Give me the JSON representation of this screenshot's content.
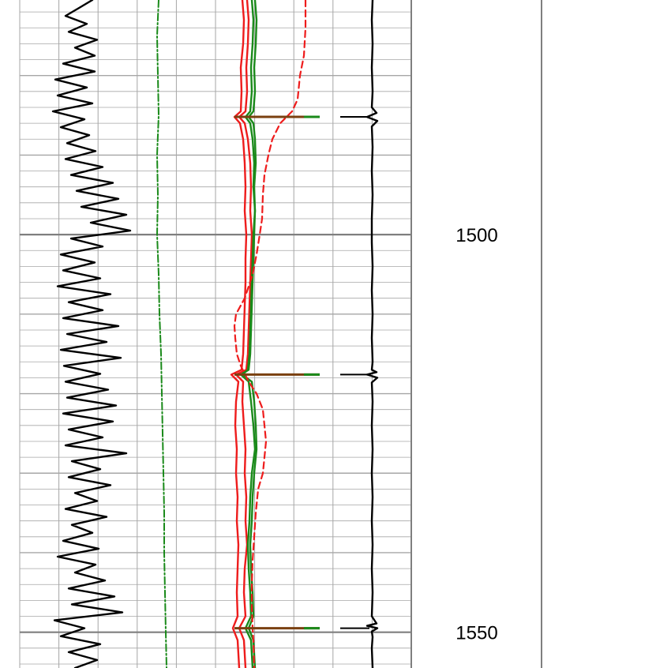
{
  "chart_data": {
    "type": "line",
    "title": "",
    "depth_axis": {
      "ylim": [
        1470.5,
        1554.5
      ],
      "major_step": 50,
      "mid_step": 10,
      "minor_step": 2,
      "labels": [
        "1500",
        "1550"
      ],
      "label_values": [
        1500,
        1550
      ]
    },
    "colors": {
      "grid_minor": "#a6a6a6",
      "grid_major": "#7f7f7f",
      "track_border": "#7f7f7f",
      "black_curve": "#000000",
      "green_curve": "#1a8a1a",
      "red_curve": "#ee1c1c",
      "brown_marker": "#7a4010"
    },
    "marker_depths": [
      1485.2,
      1517.6,
      1549.5
    ],
    "series": [
      {
        "key": "black_track1",
        "style": "solid",
        "color": "#000000",
        "depth": [
          1470.5,
          1471.5,
          1472.5,
          1473.5,
          1474.5,
          1475.5,
          1476.5,
          1477.5,
          1478.5,
          1479.5,
          1480.5,
          1481.5,
          1482.5,
          1483.5,
          1484.5,
          1485.5,
          1486.5,
          1487.5,
          1488.5,
          1489.5,
          1490.5,
          1491.5,
          1492.5,
          1493.5,
          1494.5,
          1495.5,
          1496.5,
          1497.5,
          1498.5,
          1499.5,
          1500.5,
          1501.5,
          1502.5,
          1503.5,
          1504.5,
          1505.5,
          1506.5,
          1507.5,
          1508.5,
          1509.5,
          1510.5,
          1511.5,
          1512.5,
          1513.5,
          1514.5,
          1515.5,
          1516.5,
          1517.5,
          1518.5,
          1519.5,
          1520.5,
          1521.5,
          1522.5,
          1523.5,
          1524.5,
          1525.5,
          1526.5,
          1527.5,
          1528.5,
          1529.5,
          1530.5,
          1531.5,
          1532.5,
          1533.5,
          1534.5,
          1535.5,
          1536.5,
          1537.5,
          1538.5,
          1539.5,
          1540.5,
          1541.5,
          1542.5,
          1543.5,
          1544.5,
          1545.5,
          1546.5,
          1547.5,
          1548.5,
          1549.5,
          1550.5,
          1551.5,
          1552.5,
          1553.5,
          1554.5
        ],
        "value": [
          0.92,
          0.75,
          0.58,
          0.85,
          0.62,
          0.98,
          0.7,
          0.95,
          0.55,
          0.95,
          0.45,
          0.85,
          0.48,
          0.92,
          0.42,
          0.82,
          0.52,
          0.88,
          0.6,
          0.96,
          0.58,
          1.05,
          0.65,
          1.18,
          0.72,
          1.25,
          0.78,
          1.35,
          0.9,
          1.4,
          0.65,
          1.05,
          0.52,
          0.95,
          0.55,
          1.02,
          0.48,
          1.15,
          0.62,
          1.05,
          0.55,
          1.25,
          0.6,
          1.1,
          0.52,
          1.28,
          0.56,
          1.02,
          0.58,
          1.12,
          0.6,
          1.22,
          0.55,
          1.18,
          0.62,
          1.05,
          0.58,
          1.35,
          0.66,
          1.02,
          0.62,
          1.15,
          0.7,
          0.98,
          0.58,
          1.1,
          0.66,
          0.92,
          0.55,
          1.0,
          0.48,
          0.96,
          0.7,
          1.08,
          0.62,
          1.2,
          0.66,
          1.3,
          0.44,
          0.82,
          0.52,
          1.02,
          0.62,
          0.98,
          0.7
        ]
      },
      {
        "key": "green_dashdot_track1",
        "style": "dashdot",
        "color": "#1a8a1a",
        "depth": [
          1470.5,
          1475.0,
          1480.0,
          1485.0,
          1490.0,
          1495.0,
          1500.0,
          1505.0,
          1510.0,
          1515.0,
          1520.0,
          1525.0,
          1530.0,
          1535.0,
          1540.0,
          1545.0,
          1550.0,
          1554.5
        ],
        "value": [
          1.76,
          1.74,
          1.75,
          1.76,
          1.74,
          1.75,
          1.74,
          1.76,
          1.77,
          1.79,
          1.8,
          1.81,
          1.82,
          1.83,
          1.83,
          1.84,
          1.85,
          1.86
        ]
      },
      {
        "key": "red_solid_1",
        "style": "solid",
        "color": "#ee1c1c",
        "depth": [
          1470.5,
          1473.0,
          1476.0,
          1479.0,
          1482.0,
          1484.5,
          1485.2,
          1486.0,
          1488.0,
          1491.0,
          1494.0,
          1497.0,
          1500.0,
          1503.0,
          1506.0,
          1509.0,
          1512.0,
          1515.0,
          1517.0,
          1517.6,
          1518.5,
          1521.0,
          1524.0,
          1527.0,
          1530.0,
          1533.0,
          1536.0,
          1539.0,
          1542.0,
          1545.0,
          1548.0,
          1549.5,
          1551.0,
          1554.5
        ],
        "value": [
          2.82,
          2.84,
          2.83,
          2.8,
          2.81,
          2.8,
          2.72,
          2.79,
          2.83,
          2.85,
          2.86,
          2.85,
          2.87,
          2.86,
          2.86,
          2.85,
          2.84,
          2.83,
          2.81,
          2.68,
          2.77,
          2.74,
          2.73,
          2.75,
          2.74,
          2.76,
          2.75,
          2.77,
          2.76,
          2.75,
          2.76,
          2.7,
          2.76,
          2.78
        ]
      },
      {
        "key": "red_solid_2",
        "style": "solid",
        "color": "#ee1c1c",
        "depth": [
          1470.5,
          1473.0,
          1476.0,
          1479.0,
          1482.0,
          1484.5,
          1485.2,
          1486.0,
          1488.0,
          1491.0,
          1494.0,
          1497.0,
          1500.0,
          1503.0,
          1506.0,
          1509.0,
          1512.0,
          1515.0,
          1517.0,
          1517.6,
          1518.5,
          1521.0,
          1524.0,
          1527.0,
          1530.0,
          1533.0,
          1536.0,
          1539.0,
          1542.0,
          1545.0,
          1548.0,
          1549.5,
          1551.0,
          1554.5
        ],
        "value": [
          2.88,
          2.9,
          2.89,
          2.87,
          2.88,
          2.86,
          2.78,
          2.85,
          2.89,
          2.92,
          2.93,
          2.92,
          2.94,
          2.93,
          2.92,
          2.91,
          2.9,
          2.89,
          2.87,
          2.74,
          2.83,
          2.82,
          2.84,
          2.86,
          2.85,
          2.87,
          2.86,
          2.88,
          2.85,
          2.84,
          2.86,
          2.78,
          2.84,
          2.86
        ]
      },
      {
        "key": "green_solid_1",
        "style": "solid",
        "color": "#1a8a1a",
        "depth": [
          1470.5,
          1473.0,
          1476.0,
          1479.0,
          1482.0,
          1484.5,
          1485.2,
          1486.0,
          1488.0,
          1491.0,
          1494.0,
          1497.0,
          1500.0,
          1503.0,
          1506.0,
          1509.0,
          1512.0,
          1515.0,
          1517.0,
          1517.6,
          1518.5,
          1521.0,
          1524.0,
          1527.0,
          1530.0,
          1533.0,
          1536.0,
          1539.0,
          1542.0,
          1545.0,
          1548.0,
          1549.5,
          1551.0,
          1554.5
        ],
        "value": [
          2.94,
          2.96,
          2.95,
          2.93,
          2.94,
          2.92,
          2.86,
          2.92,
          2.95,
          2.97,
          2.96,
          2.98,
          2.97,
          2.96,
          2.95,
          2.94,
          2.93,
          2.92,
          2.9,
          2.8,
          2.9,
          2.93,
          2.96,
          2.98,
          2.94,
          2.92,
          2.91,
          2.89,
          2.9,
          2.92,
          2.93,
          2.86,
          2.93,
          2.95
        ]
      },
      {
        "key": "green_solid_2",
        "style": "solid",
        "color": "#1a8a1a",
        "depth": [
          1470.5,
          1473.0,
          1476.0,
          1479.0,
          1482.0,
          1484.5,
          1485.2,
          1486.0,
          1488.0,
          1491.0,
          1494.0,
          1497.0,
          1500.0,
          1503.0,
          1506.0,
          1509.0,
          1512.0,
          1515.0,
          1517.0,
          1517.6,
          1518.5,
          1521.0,
          1524.0,
          1527.0,
          1530.0,
          1533.0,
          1536.0,
          1539.0,
          1542.0,
          1545.0,
          1548.0,
          1549.5,
          1551.0,
          1554.5
        ],
        "value": [
          2.98,
          3.0,
          2.99,
          2.97,
          2.98,
          2.96,
          2.9,
          2.96,
          2.98,
          2.99,
          2.97,
          2.98,
          2.96,
          2.95,
          2.94,
          2.93,
          2.92,
          2.91,
          2.89,
          2.82,
          2.94,
          2.97,
          2.99,
          3.0,
          2.97,
          2.95,
          2.94,
          2.92,
          2.93,
          2.95,
          2.96,
          2.9,
          2.96,
          2.98
        ]
      },
      {
        "key": "red_dashed",
        "style": "dashed",
        "color": "#ee1c1c",
        "depth": [
          1470.5,
          1474.0,
          1477.5,
          1480.0,
          1483.0,
          1484.5,
          1486.0,
          1488.0,
          1490.0,
          1492.5,
          1495.0,
          1498.0,
          1500.0,
          1502.5,
          1505.0,
          1508.0,
          1510.0,
          1511.5,
          1513.0,
          1515.0,
          1516.5,
          1518.5,
          1520.0,
          1522.0,
          1524.0,
          1526.0,
          1528.0,
          1530.0,
          1532.0,
          1535.0,
          1538.0,
          1541.0,
          1544.0,
          1547.0,
          1549.5,
          1551.0,
          1554.5
        ],
        "value": [
          3.62,
          3.62,
          3.6,
          3.55,
          3.52,
          3.45,
          3.3,
          3.2,
          3.15,
          3.1,
          3.08,
          3.07,
          3.04,
          3.0,
          2.95,
          2.85,
          2.74,
          2.72,
          2.73,
          2.75,
          2.8,
          2.9,
          3.0,
          3.08,
          3.1,
          3.12,
          3.1,
          3.08,
          3.02,
          2.99,
          2.97,
          2.95,
          2.94,
          2.94,
          2.95,
          2.96,
          2.97
        ]
      },
      {
        "key": "black_track3",
        "style": "solid",
        "color": "#000000",
        "depth": [
          1470.5,
          1473.0,
          1476.0,
          1479.0,
          1482.0,
          1484.0,
          1484.7,
          1485.2,
          1485.7,
          1486.4,
          1489.0,
          1492.0,
          1495.0,
          1498.0,
          1501.0,
          1504.0,
          1507.0,
          1510.0,
          1513.0,
          1516.0,
          1517.0,
          1517.3,
          1517.6,
          1518.0,
          1518.6,
          1521.0,
          1524.0,
          1527.0,
          1530.0,
          1533.0,
          1536.0,
          1539.0,
          1542.0,
          1545.0,
          1548.0,
          1548.9,
          1549.2,
          1549.5,
          1549.9,
          1550.6,
          1552.0,
          1554.5
        ],
        "value": [
          4.47,
          4.46,
          4.47,
          4.46,
          4.47,
          4.46,
          4.52,
          4.4,
          4.53,
          4.46,
          4.47,
          4.46,
          4.47,
          4.46,
          4.46,
          4.47,
          4.46,
          4.47,
          4.46,
          4.47,
          4.46,
          4.52,
          4.4,
          4.53,
          4.46,
          4.47,
          4.46,
          4.47,
          4.46,
          4.47,
          4.46,
          4.47,
          4.46,
          4.47,
          4.46,
          4.52,
          4.4,
          4.53,
          4.46,
          4.47,
          4.46,
          4.47
        ]
      }
    ]
  }
}
